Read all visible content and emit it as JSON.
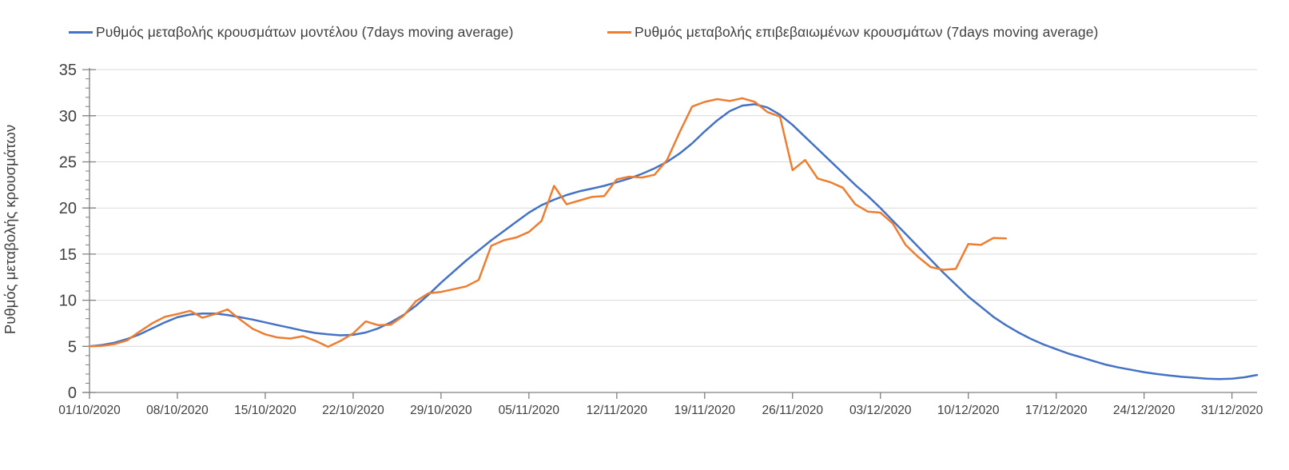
{
  "y_axis": {
    "title": "Ρυθμός μεταβολής κρουσμάτων",
    "ticks": [
      0,
      5,
      10,
      15,
      20,
      25,
      30,
      35
    ]
  },
  "x_axis": {
    "tick_labels": [
      "01/10/2020",
      "08/10/2020",
      "15/10/2020",
      "22/10/2020",
      "29/10/2020",
      "05/11/2020",
      "12/11/2020",
      "19/11/2020",
      "26/11/2020",
      "03/12/2020",
      "10/12/2020",
      "17/12/2020",
      "24/12/2020",
      "31/12/2020"
    ]
  },
  "chart_data": {
    "type": "line",
    "title": "",
    "xlabel": "",
    "ylabel": "Ρυθμός μεταβολής κρουσμάτων",
    "ylim": [
      0,
      35
    ],
    "grid": "horizontal",
    "legend_position": "top",
    "x_unit": "daily points, day 0 = 01/10/2020, one value per day",
    "x_tick_labels": [
      "01/10/2020",
      "08/10/2020",
      "15/10/2020",
      "22/10/2020",
      "29/10/2020",
      "05/11/2020",
      "12/11/2020",
      "19/11/2020",
      "26/11/2020",
      "03/12/2020",
      "10/12/2020",
      "17/12/2020",
      "24/12/2020",
      "31/12/2020"
    ],
    "x_tick_every_days": 7,
    "series": [
      {
        "name": "Ρυθμός μεταβολής κρουσμάτων μοντέλου (7days moving average)",
        "color": "#4472c4",
        "start_date": "01/10/2020",
        "values": [
          5.0,
          5.15,
          5.4,
          5.8,
          6.3,
          6.95,
          7.6,
          8.15,
          8.45,
          8.55,
          8.55,
          8.4,
          8.15,
          7.9,
          7.6,
          7.3,
          7.0,
          6.7,
          6.45,
          6.3,
          6.2,
          6.25,
          6.5,
          6.95,
          7.6,
          8.4,
          9.4,
          10.6,
          11.9,
          13.1,
          14.3,
          15.4,
          16.5,
          17.5,
          18.5,
          19.5,
          20.3,
          20.9,
          21.4,
          21.8,
          22.1,
          22.4,
          22.8,
          23.2,
          23.7,
          24.3,
          25.0,
          25.9,
          27.0,
          28.3,
          29.5,
          30.5,
          31.1,
          31.25,
          30.9,
          30.1,
          29.0,
          27.7,
          26.4,
          25.1,
          23.8,
          22.5,
          21.3,
          20.0,
          18.6,
          17.2,
          15.8,
          14.4,
          13.0,
          11.7,
          10.4,
          9.3,
          8.2,
          7.3,
          6.5,
          5.8,
          5.2,
          4.7,
          4.2,
          3.8,
          3.4,
          3.0,
          2.7,
          2.45,
          2.2,
          2.0,
          1.85,
          1.7,
          1.6,
          1.5,
          1.45,
          1.5,
          1.65,
          1.9
        ]
      },
      {
        "name": "Ρυθμός μεταβολής επιβεβαιωμένων κρουσμάτων (7days moving average)",
        "color": "#ed7d31",
        "start_date": "01/10/2020",
        "values": [
          5.0,
          5.05,
          5.25,
          5.65,
          6.6,
          7.5,
          8.2,
          8.5,
          8.85,
          8.1,
          8.5,
          9.0,
          7.9,
          6.9,
          6.3,
          5.95,
          5.85,
          6.1,
          5.6,
          4.95,
          5.6,
          6.4,
          7.7,
          7.3,
          7.35,
          8.3,
          9.9,
          10.75,
          10.9,
          11.2,
          11.5,
          12.2,
          15.9,
          16.5,
          16.8,
          17.4,
          18.6,
          22.4,
          20.4,
          20.8,
          21.2,
          21.3,
          23.1,
          23.4,
          23.3,
          23.6,
          25.2,
          28.2,
          31.0,
          31.5,
          31.8,
          31.6,
          31.9,
          31.5,
          30.4,
          29.9,
          24.1,
          25.2,
          23.2,
          22.8,
          22.2,
          20.4,
          19.6,
          19.5,
          18.3,
          16.0,
          14.7,
          13.6,
          13.3,
          13.4,
          16.1,
          16.0,
          16.75,
          16.7
        ]
      }
    ]
  },
  "colors": {
    "model_line": "#4472c4",
    "confirmed_line": "#ed7d31",
    "text": "#404040",
    "axis": "#808080",
    "gridline": "#d9d9d9",
    "background": "#ffffff"
  }
}
